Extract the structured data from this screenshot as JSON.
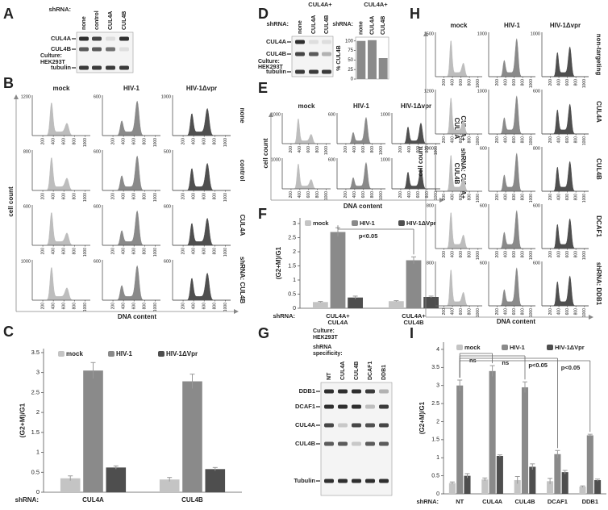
{
  "panels": {
    "A": {
      "label": "A",
      "shrna": "shRNA:",
      "lanes": [
        "none",
        "control",
        "CUL4A",
        "CUL4B"
      ],
      "bands": [
        "CUL4A",
        "CUL4B",
        "tubulin"
      ],
      "culture": [
        "Culture:",
        "HEK293T"
      ]
    },
    "B": {
      "label": "B",
      "columns": [
        "mock",
        "HIV-1",
        "HIV-1Δvpr"
      ],
      "rows": [
        {
          "label": [
            "none"
          ],
          "ymax": [
            1200,
            600,
            1000
          ]
        },
        {
          "label": [
            "control"
          ],
          "ymax": [
            800,
            600,
            500
          ]
        },
        {
          "label": [
            "CUL4A"
          ],
          "ymax": [
            600,
            600,
            600
          ]
        },
        {
          "label": [
            "shRNA: CUL4B"
          ],
          "ymax": [
            1000,
            600,
            600
          ]
        }
      ],
      "y_label": "cell count",
      "x_label": "DNA content",
      "xlim": [
        0,
        1100
      ],
      "xticks": [
        200,
        400,
        600,
        800,
        1000
      ]
    },
    "C": {
      "label": "C",
      "chart": {
        "type": "bar",
        "y_label": "(G2+M)/G1",
        "x_prefix": "shRNA:",
        "categories": [
          "CUL4A",
          "CUL4B"
        ],
        "ylim": [
          0,
          3.6
        ],
        "yticks": [
          0,
          0.5,
          1,
          1.5,
          2,
          2.5,
          3,
          3.5
        ],
        "series": [
          {
            "name": "mock",
            "color": "#c4c4c4",
            "values": [
              0.35,
              0.32
            ],
            "errors": [
              0.06,
              0.05
            ]
          },
          {
            "name": "HIV-1",
            "color": "#8a8a8a",
            "values": [
              3.05,
              2.78
            ],
            "errors": [
              0.2,
              0.18
            ]
          },
          {
            "name": "HIV-1ΔVpr",
            "color": "#4e4e4e",
            "values": [
              0.62,
              0.58
            ],
            "errors": [
              0.04,
              0.04
            ]
          }
        ]
      }
    },
    "D": {
      "label": "D",
      "shrna": "shRNA:",
      "group": "CUL4A+",
      "lanes": [
        "none",
        "CUL4A",
        "CUL4B"
      ],
      "bands": [
        "CUL4A",
        "CUL4B",
        "tubulin"
      ],
      "culture": [
        "Culture:",
        "HEK293T"
      ],
      "chart": {
        "type": "bar",
        "shrna": "shRNA:",
        "group": "CUL4A+",
        "categories": [
          "none",
          "CUL4A",
          "CUL4B"
        ],
        "y_label": "% CUL4B",
        "ylim": [
          0,
          110
        ],
        "yticks": [
          0,
          25,
          50,
          75,
          100
        ],
        "values": [
          100,
          102,
          55
        ],
        "color": "#8a8a8a"
      }
    },
    "E": {
      "label": "E",
      "columns": [
        "mock",
        "HIV-1",
        "HIV-1Δvpr"
      ],
      "rows": [
        {
          "label": [
            "CUL4A+",
            "CUL4A"
          ],
          "ymax": [
            1000,
            600,
            1000
          ]
        },
        {
          "label": [
            "shRNA: CUL4A+",
            "CUL4B"
          ],
          "ymax": [
            1000,
            600,
            1000
          ]
        }
      ],
      "y_label": "cell count",
      "x_label": "DNA content",
      "xlim": [
        0,
        1100
      ],
      "xticks": [
        200,
        400,
        600,
        800,
        1000
      ]
    },
    "F": {
      "label": "F",
      "chart": {
        "type": "bar",
        "y_label": "(G2+M)/G1",
        "x_prefix": "shRNA:",
        "categories": [
          [
            "CUL4A+",
            "CUL4A"
          ],
          [
            "CUL4A+",
            "CUL4B"
          ]
        ],
        "ylim": [
          0,
          3.2
        ],
        "yticks": [
          0,
          0.5,
          1,
          1.5,
          2,
          2.5,
          3
        ],
        "annotations": [
          "p<0.05"
        ],
        "series": [
          {
            "name": "mock",
            "color": "#c4c4c4",
            "values": [
              0.22,
              0.25
            ],
            "errors": [
              0.02,
              0.02
            ]
          },
          {
            "name": "HIV-1",
            "color": "#8a8a8a",
            "values": [
              2.7,
              1.7
            ],
            "errors": [
              0.15,
              0.12
            ]
          },
          {
            "name": "HIV-1ΔVpr",
            "color": "#4e4e4e",
            "values": [
              0.38,
              0.4
            ],
            "errors": [
              0.05,
              0.03
            ]
          }
        ]
      }
    },
    "G": {
      "label": "G",
      "culture": [
        "Culture:",
        "HEK293T"
      ],
      "shrna": [
        "shRNA",
        "specificity:"
      ],
      "lanes": [
        "NT",
        "CUL4A",
        "CUL4B",
        "DCAF1",
        "DDB1"
      ],
      "bands": [
        "DDB1",
        "DCAF1",
        "CUL4A",
        "CUL4B",
        "Tubulin"
      ]
    },
    "H": {
      "label": "H",
      "columns": [
        "mock",
        "HIV-1",
        "HIV-1Δvpr"
      ],
      "rows": [
        {
          "label": [
            "non-targeting"
          ],
          "ymax": [
            1500,
            1000,
            1000
          ]
        },
        {
          "label": [
            "CUL4A"
          ],
          "ymax": [
            1200,
            1000,
            600
          ]
        },
        {
          "label": [
            "CUL4B"
          ],
          "ymax": [
            1000,
            600,
            800
          ]
        },
        {
          "label": [
            "DCAF1"
          ],
          "ymax": [
            800,
            600,
            600
          ]
        },
        {
          "label": [
            "shRNA: DDB1"
          ],
          "ymax": [
            800,
            600,
            600
          ]
        }
      ],
      "y_label": "cell count",
      "x_label": "DNA content",
      "xlim": [
        0,
        1100
      ],
      "xticks": [
        200,
        400,
        600,
        800,
        1000
      ]
    },
    "I": {
      "label": "I",
      "chart": {
        "type": "bar",
        "y_label": "(G2+M)/G1",
        "x_prefix": "shRNA:",
        "categories": [
          "NT",
          "CUL4A",
          "CUL4B",
          "DCAF1",
          "DDB1"
        ],
        "ylim": [
          0,
          4.2
        ],
        "yticks": [
          0,
          0.5,
          1,
          1.5,
          2,
          2.5,
          3,
          3.5,
          4
        ],
        "annotations": [
          "ns",
          "ns",
          "p<0.05",
          "p<0.05"
        ],
        "series": [
          {
            "name": "mock",
            "color": "#c4c4c4",
            "values": [
              0.3,
              0.4,
              0.38,
              0.35,
              0.2
            ],
            "errors": [
              0.03,
              0.04,
              0.1,
              0.08,
              0.02
            ]
          },
          {
            "name": "HIV-1",
            "color": "#8a8a8a",
            "values": [
              3.0,
              3.4,
              2.95,
              1.1,
              1.62
            ],
            "errors": [
              0.15,
              0.15,
              0.15,
              0.1,
              0.03
            ]
          },
          {
            "name": "HIV-1ΔVpr",
            "color": "#4e4e4e",
            "values": [
              0.5,
              1.05,
              0.75,
              0.6,
              0.38
            ],
            "errors": [
              0.06,
              0.03,
              0.08,
              0.05,
              0.03
            ]
          }
        ]
      }
    }
  }
}
